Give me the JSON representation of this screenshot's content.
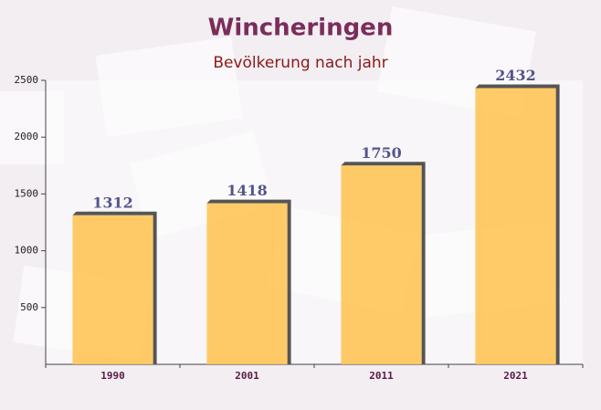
{
  "chart_data": {
    "type": "bar",
    "title": "Wincheringen",
    "subtitle": "Bevölkerung nach jahr",
    "categories": [
      "1990",
      "2001",
      "2011",
      "2021"
    ],
    "values": [
      1312,
      1418,
      1750,
      2432
    ],
    "color": "#ffc24d",
    "ylim": [
      0,
      2500
    ],
    "yticks": [
      500,
      1000,
      1500,
      2000,
      2500
    ]
  }
}
